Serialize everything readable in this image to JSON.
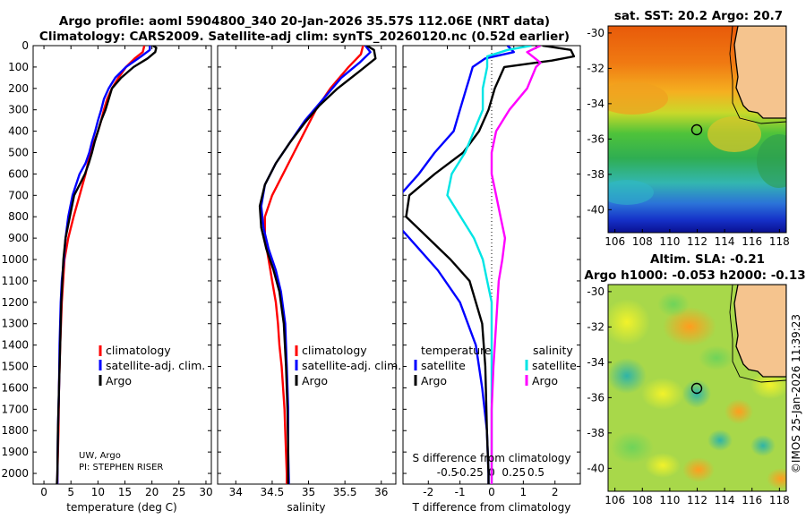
{
  "titles": {
    "line1": "Argo profile: aoml 5904800_340 20-Jan-2026 35.57S 112.06E (NRT data)",
    "line2": "Climatology: CARS2009. Satellite-adj clim: synTS_20260120.nc (0.52d earlier)",
    "map1": "sat. SST: 20.2 Argo: 20.7",
    "map2a": "Altim. SLA: -0.21",
    "map2b": "Argo h1000: -0.053 h2000: -0.13",
    "stamp": "©IMOS 25-Jan-2026 11:39:23",
    "credit1": "UW, Argo",
    "credit2": "PI: STEPHEN RISER"
  },
  "colors": {
    "climatology": "#ff0000",
    "satellite": "#0000ff",
    "argo": "#000000",
    "sat_salinity": "#00e5e5",
    "argo_salinity": "#ff00ff",
    "land": "#f5c48e"
  },
  "depth_ticks": [
    0,
    100,
    200,
    300,
    400,
    500,
    600,
    700,
    800,
    900,
    1000,
    1100,
    1200,
    1300,
    1400,
    1500,
    1600,
    1700,
    1800,
    1900,
    2000
  ],
  "chart_data": [
    {
      "type": "line",
      "name": "temperature",
      "xlabel": "temperature (deg C)",
      "xlim": [
        -2,
        31
      ],
      "ylim": [
        2050,
        0
      ],
      "xticks": [
        0,
        5,
        10,
        15,
        20,
        25,
        30
      ],
      "legend": {
        "position": "center-right",
        "entries": [
          "climatology",
          "satellite-adj. clim.",
          "Argo"
        ]
      },
      "series": [
        {
          "name": "climatology",
          "color": "#ff0000",
          "points": [
            [
              18.6,
              0
            ],
            [
              18.3,
              30
            ],
            [
              16.8,
              60
            ],
            [
              15.2,
              100
            ],
            [
              13.8,
              150
            ],
            [
              12.6,
              200
            ],
            [
              11.7,
              250
            ],
            [
              11.1,
              300
            ],
            [
              10.6,
              350
            ],
            [
              10.0,
              400
            ],
            [
              9.3,
              450
            ],
            [
              8.6,
              500
            ],
            [
              7.7,
              600
            ],
            [
              6.6,
              700
            ],
            [
              5.5,
              800
            ],
            [
              4.5,
              900
            ],
            [
              3.8,
              1000
            ],
            [
              3.3,
              1200
            ],
            [
              3.0,
              1400
            ],
            [
              2.8,
              1600
            ],
            [
              2.7,
              1800
            ],
            [
              2.5,
              2000
            ],
            [
              2.5,
              2050
            ]
          ]
        },
        {
          "name": "satellite-adj. clim.",
          "color": "#0000ff",
          "points": [
            [
              19.6,
              0
            ],
            [
              19.6,
              20
            ],
            [
              18.0,
              50
            ],
            [
              15.2,
              100
            ],
            [
              13.2,
              150
            ],
            [
              12.0,
              200
            ],
            [
              11.1,
              250
            ],
            [
              10.6,
              300
            ],
            [
              10.0,
              350
            ],
            [
              9.5,
              400
            ],
            [
              8.9,
              450
            ],
            [
              8.4,
              500
            ],
            [
              7.7,
              550
            ],
            [
              6.6,
              600
            ],
            [
              5.3,
              700
            ],
            [
              4.5,
              800
            ],
            [
              4.0,
              900
            ],
            [
              3.7,
              1000
            ],
            [
              3.3,
              1100
            ],
            [
              3.1,
              1200
            ],
            [
              2.9,
              1400
            ],
            [
              2.8,
              1600
            ],
            [
              2.6,
              1800
            ],
            [
              2.5,
              2000
            ],
            [
              2.5,
              2050
            ]
          ]
        },
        {
          "name": "Argo",
          "color": "#000000",
          "points": [
            [
              20.2,
              0
            ],
            [
              20.8,
              10
            ],
            [
              20.6,
              30
            ],
            [
              19.2,
              60
            ],
            [
              16.6,
              100
            ],
            [
              14.3,
              150
            ],
            [
              12.6,
              200
            ],
            [
              11.4,
              300
            ],
            [
              10.6,
              350
            ],
            [
              10.0,
              400
            ],
            [
              9.4,
              450
            ],
            [
              8.9,
              500
            ],
            [
              8.3,
              550
            ],
            [
              7.6,
              600
            ],
            [
              6.6,
              650
            ],
            [
              5.6,
              700
            ],
            [
              4.8,
              800
            ],
            [
              4.0,
              900
            ],
            [
              3.6,
              1000
            ],
            [
              3.2,
              1200
            ],
            [
              3.0,
              1400
            ],
            [
              2.8,
              1600
            ],
            [
              2.6,
              1800
            ],
            [
              2.5,
              2000
            ],
            [
              2.4,
              2050
            ]
          ]
        }
      ]
    },
    {
      "type": "line",
      "name": "salinity",
      "xlabel": "salinity",
      "xlim": [
        33.75,
        36.2
      ],
      "ylim": [
        2050,
        0
      ],
      "xticks": [
        34,
        34.5,
        35,
        35.5,
        36
      ],
      "legend": {
        "position": "center-right",
        "entries": [
          "climatology",
          "satellite-adj. clim.",
          "Argo"
        ]
      },
      "series": [
        {
          "name": "climatology",
          "color": "#ff0000",
          "points": [
            [
              35.75,
              0
            ],
            [
              35.72,
              40
            ],
            [
              35.55,
              100
            ],
            [
              35.3,
              200
            ],
            [
              35.1,
              300
            ],
            [
              34.95,
              400
            ],
            [
              34.8,
              500
            ],
            [
              34.65,
              600
            ],
            [
              34.5,
              700
            ],
            [
              34.4,
              800
            ],
            [
              34.4,
              900
            ],
            [
              34.45,
              1000
            ],
            [
              34.5,
              1100
            ],
            [
              34.55,
              1200
            ],
            [
              34.58,
              1300
            ],
            [
              34.6,
              1400
            ],
            [
              34.63,
              1500
            ],
            [
              34.65,
              1600
            ],
            [
              34.67,
              1700
            ],
            [
              34.68,
              1800
            ],
            [
              34.7,
              2000
            ],
            [
              34.7,
              2050
            ]
          ]
        },
        {
          "name": "satellite-adj. clim.",
          "color": "#0000ff",
          "points": [
            [
              35.78,
              0
            ],
            [
              35.85,
              30
            ],
            [
              35.7,
              80
            ],
            [
              35.45,
              150
            ],
            [
              35.2,
              250
            ],
            [
              34.95,
              350
            ],
            [
              34.75,
              450
            ],
            [
              34.55,
              550
            ],
            [
              34.4,
              650
            ],
            [
              34.35,
              750
            ],
            [
              34.38,
              850
            ],
            [
              34.45,
              950
            ],
            [
              34.55,
              1050
            ],
            [
              34.62,
              1150
            ],
            [
              34.68,
              1300
            ],
            [
              34.7,
              1500
            ],
            [
              34.72,
              1700
            ],
            [
              34.72,
              1900
            ],
            [
              34.73,
              2050
            ]
          ]
        },
        {
          "name": "Argo",
          "color": "#000000",
          "points": [
            [
              35.8,
              0
            ],
            [
              35.9,
              20
            ],
            [
              35.92,
              60
            ],
            [
              35.7,
              120
            ],
            [
              35.4,
              200
            ],
            [
              35.15,
              280
            ],
            [
              34.95,
              360
            ],
            [
              34.75,
              450
            ],
            [
              34.55,
              550
            ],
            [
              34.4,
              650
            ],
            [
              34.33,
              750
            ],
            [
              34.35,
              850
            ],
            [
              34.42,
              950
            ],
            [
              34.52,
              1050
            ],
            [
              34.6,
              1150
            ],
            [
              34.66,
              1300
            ],
            [
              34.69,
              1500
            ],
            [
              34.71,
              1700
            ],
            [
              34.72,
              1900
            ],
            [
              34.72,
              2050
            ]
          ]
        }
      ]
    },
    {
      "type": "line",
      "name": "difference",
      "xlabel": "T difference from climatology",
      "xlabel_top": "S difference from climatology",
      "xlim": [
        -2.8,
        2.8
      ],
      "ylim": [
        2050,
        0
      ],
      "xticks": [
        -2,
        -1,
        0,
        1,
        2
      ],
      "xticks_sal": [
        -0.5,
        -0.25,
        0,
        0.25,
        0.5
      ],
      "legend": {
        "position": "center",
        "entries": [
          "temperature",
          "satellite",
          "Argo",
          "salinity",
          "satellite",
          "Argo"
        ]
      },
      "series": [
        {
          "name": "temperature satellite",
          "color": "#0000ff",
          "points": [
            [
              0.5,
              0
            ],
            [
              0.7,
              30
            ],
            [
              -0.2,
              60
            ],
            [
              -0.6,
              100
            ],
            [
              -0.7,
              150
            ],
            [
              -0.8,
              200
            ],
            [
              -1.0,
              300
            ],
            [
              -1.2,
              400
            ],
            [
              -1.8,
              500
            ],
            [
              -2.3,
              600
            ],
            [
              -2.9,
              700
            ],
            [
              -2.9,
              850
            ],
            [
              -2.3,
              950
            ],
            [
              -1.7,
              1050
            ],
            [
              -1.0,
              1200
            ],
            [
              -0.5,
              1400
            ],
            [
              -0.3,
              1600
            ],
            [
              -0.15,
              1800
            ],
            [
              -0.1,
              2000
            ],
            [
              -0.1,
              2050
            ]
          ]
        },
        {
          "name": "temperature Argo",
          "color": "#000000",
          "points": [
            [
              1.6,
              0
            ],
            [
              2.5,
              20
            ],
            [
              2.6,
              50
            ],
            [
              1.9,
              70
            ],
            [
              1.4,
              80
            ],
            [
              0.4,
              100
            ],
            [
              0.1,
              200
            ],
            [
              -0.1,
              300
            ],
            [
              -0.4,
              400
            ],
            [
              -0.9,
              500
            ],
            [
              -1.8,
              600
            ],
            [
              -2.6,
              700
            ],
            [
              -2.7,
              800
            ],
            [
              -2.0,
              900
            ],
            [
              -1.3,
              1000
            ],
            [
              -0.7,
              1100
            ],
            [
              -0.3,
              1300
            ],
            [
              -0.2,
              1500
            ],
            [
              -0.15,
              1800
            ],
            [
              -0.1,
              2000
            ],
            [
              -0.1,
              2050
            ]
          ]
        },
        {
          "name": "salinity satellite",
          "color": "#00e5e5",
          "points": [
            [
              0.45,
              0
            ],
            [
              0.18,
              20
            ],
            [
              -0.05,
              50
            ],
            [
              -0.05,
              100
            ],
            [
              -0.1,
              200
            ],
            [
              -0.1,
              300
            ],
            [
              -0.2,
              400
            ],
            [
              -0.3,
              500
            ],
            [
              -0.45,
              600
            ],
            [
              -0.5,
              700
            ],
            [
              -0.35,
              800
            ],
            [
              -0.2,
              900
            ],
            [
              -0.1,
              1000
            ],
            [
              -0.05,
              1100
            ],
            [
              0.0,
              1200
            ],
            [
              0.0,
              1400
            ],
            [
              0.0,
              1600
            ],
            [
              0.0,
              1800
            ],
            [
              0.0,
              2050
            ]
          ]
        },
        {
          "name": "salinity Argo",
          "color": "#ff00ff",
          "points": [
            [
              0.55,
              0
            ],
            [
              0.4,
              30
            ],
            [
              0.55,
              80
            ],
            [
              0.5,
              100
            ],
            [
              0.4,
              200
            ],
            [
              0.2,
              300
            ],
            [
              0.05,
              400
            ],
            [
              0.0,
              500
            ],
            [
              0.0,
              600
            ],
            [
              0.05,
              700
            ],
            [
              0.1,
              800
            ],
            [
              0.15,
              900
            ],
            [
              0.12,
              1000
            ],
            [
              0.08,
              1100
            ],
            [
              0.05,
              1300
            ],
            [
              0.02,
              1500
            ],
            [
              0.0,
              1700
            ],
            [
              0.0,
              1900
            ],
            [
              0.0,
              2050
            ]
          ]
        }
      ]
    },
    {
      "type": "heatmap",
      "name": "sst-map",
      "title": "sat. SST: 20.2 Argo: 20.7",
      "xlim": [
        105.5,
        118.5
      ],
      "ylim": [
        -41.3,
        -29.6
      ],
      "xticks": [
        106,
        108,
        110,
        112,
        114,
        116,
        118
      ],
      "yticks": [
        -30,
        -32,
        -34,
        -36,
        -38,
        -40
      ],
      "marker": {
        "lon": 112.06,
        "lat": -35.57
      }
    },
    {
      "type": "heatmap",
      "name": "sla-map",
      "title": "Altim. SLA: -0.21 / Argo h1000: -0.053 h2000: -0.13",
      "xlim": [
        105.5,
        118.5
      ],
      "ylim": [
        -41.3,
        -29.6
      ],
      "xticks": [
        106,
        108,
        110,
        112,
        114,
        116,
        118
      ],
      "yticks": [
        -30,
        -32,
        -34,
        -36,
        -38,
        -40
      ],
      "marker": {
        "lon": 112.06,
        "lat": -35.57
      }
    }
  ]
}
